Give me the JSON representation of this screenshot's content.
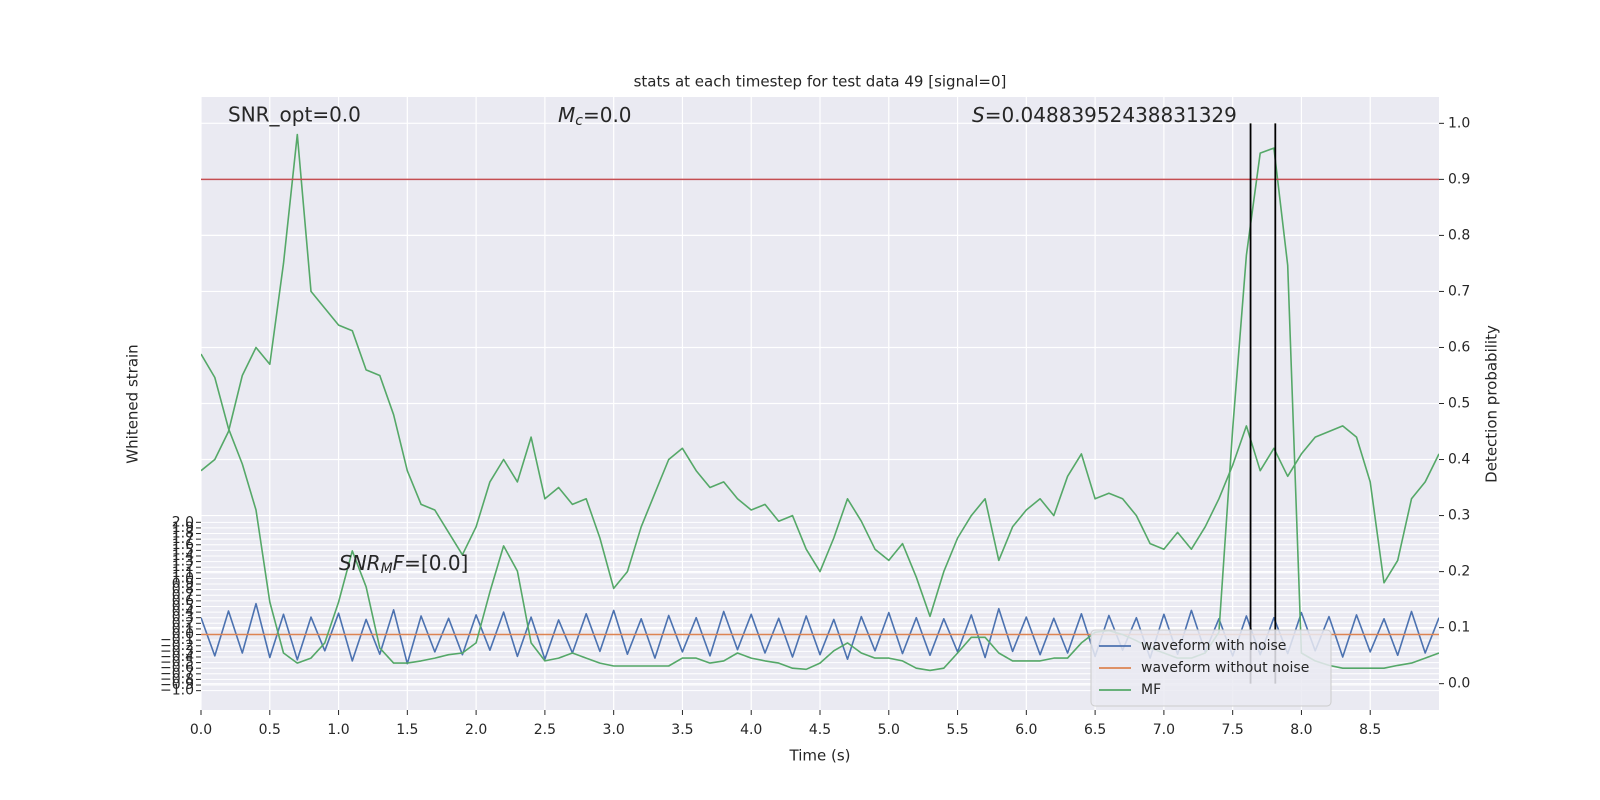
{
  "chart_data": {
    "type": "line",
    "title": "stats at each timestep for test data 49 [signal=0]",
    "xlabel": "Time (s)",
    "ylabel": "Whitened strain",
    "y2label": "Detection probability",
    "annotations": {
      "snr_opt": "SNR_opt=0.0",
      "mc": [
        "M",
        "c",
        "=0.0"
      ],
      "s": [
        "S",
        "=0.04883952438831329"
      ],
      "snr_mf": [
        "SNR",
        "M",
        "F",
        "=[0.0]"
      ]
    },
    "xlim": [
      0,
      9
    ],
    "xticks": [
      {
        "value": 0,
        "label": "0.0"
      },
      0.5,
      {
        "value": 1,
        "label": "1.0"
      },
      1.5,
      {
        "value": 2,
        "label": "2.0"
      },
      2.5,
      {
        "value": 3,
        "label": "3.0"
      },
      3.5,
      {
        "value": 4,
        "label": "4.0"
      },
      4.5,
      {
        "value": 5,
        "label": "5.0"
      },
      5.5,
      {
        "value": 6,
        "label": "6.0"
      },
      6.5,
      {
        "value": 7,
        "label": "7.0"
      },
      7.5,
      {
        "value": 8,
        "label": "8.0"
      },
      8.5
    ],
    "ylim": [
      -1.345,
      9.58
    ],
    "yticks": [
      {
        "value": -1,
        "label": "−1.0"
      },
      {
        "value": -0.9,
        "label": "−0.9"
      },
      {
        "value": -0.8,
        "label": "−0.8"
      },
      {
        "value": -0.7,
        "label": "−0.7"
      },
      {
        "value": -0.6,
        "label": "−0.6"
      },
      {
        "value": -0.5,
        "label": "−0.5"
      },
      {
        "value": -0.4,
        "label": "−0.4"
      },
      {
        "value": -0.3,
        "label": "−0.3"
      },
      {
        "value": -0.2,
        "label": "−0.2"
      },
      {
        "value": -0.1,
        "label": "−0.1"
      },
      {
        "value": 0,
        "label": "0.0"
      },
      0.1,
      0.2,
      0.3,
      0.4,
      0.5,
      0.6,
      0.7,
      0.8,
      0.9,
      {
        "value": 1,
        "label": "1.0"
      },
      1.1,
      1.2,
      1.3,
      1.4,
      1.5,
      1.6,
      1.7,
      1.8,
      1.9,
      {
        "value": 2,
        "label": "2.0"
      }
    ],
    "y2lim": [
      -0.047,
      1.047
    ],
    "y2ticks": [
      {
        "value": 0,
        "label": "0.0"
      },
      0.1,
      0.2,
      0.3,
      0.4,
      0.5,
      0.6,
      0.7,
      0.8,
      0.9,
      {
        "value": 1,
        "label": "1.0"
      }
    ],
    "grid": true,
    "legend": "lower right",
    "hline": {
      "value": 0.9,
      "color": "#c44e52",
      "axis": "y2"
    },
    "vlines": {
      "x": [
        7.63,
        7.81
      ],
      "ymin": 0,
      "ymax": 1,
      "color": "#000000",
      "axis": "y2"
    },
    "x": [
      0,
      0.1,
      0.2,
      0.3,
      0.4,
      0.5,
      0.6,
      0.7,
      0.8,
      0.9,
      1,
      1.1,
      1.2,
      1.3,
      1.4,
      1.5,
      1.6,
      1.7,
      1.8,
      1.9,
      2,
      2.1,
      2.2,
      2.3,
      2.4,
      2.5,
      2.6,
      2.7,
      2.8,
      2.9,
      3,
      3.1,
      3.2,
      3.3,
      3.4,
      3.5,
      3.6,
      3.7,
      3.8,
      3.9,
      4,
      4.1,
      4.2,
      4.3,
      4.4,
      4.5,
      4.6,
      4.7,
      4.8,
      4.9,
      5,
      5.1,
      5.2,
      5.3,
      5.4,
      5.5,
      5.6,
      5.7,
      5.8,
      5.9,
      6,
      6.1,
      6.2,
      6.3,
      6.4,
      6.5,
      6.6,
      6.7,
      6.8,
      6.9,
      7,
      7.1,
      7.2,
      7.3,
      7.4,
      7.5,
      7.6,
      7.7,
      7.8,
      7.9,
      8,
      8.1,
      8.2,
      8.3,
      8.4,
      8.5,
      8.6,
      8.7,
      8.8,
      8.9,
      9
    ],
    "series": [
      {
        "name": "waveform with noise",
        "color": "#4c72b0",
        "values": [
          0.3,
          -0.38,
          0.42,
          -0.33,
          0.55,
          -0.41,
          0.36,
          -0.45,
          0.31,
          -0.29,
          0.38,
          -0.47,
          0.27,
          -0.35,
          0.44,
          -0.52,
          0.33,
          -0.31,
          0.29,
          -0.36,
          0.35,
          -0.28,
          0.4,
          -0.39,
          0.31,
          -0.44,
          0.26,
          -0.33,
          0.37,
          -0.3,
          0.43,
          -0.35,
          0.28,
          -0.42,
          0.34,
          -0.31,
          0.3,
          -0.38,
          0.41,
          -0.27,
          0.36,
          -0.33,
          0.29,
          -0.4,
          0.33,
          -0.36,
          0.27,
          -0.44,
          0.32,
          -0.29,
          0.39,
          -0.34,
          0.3,
          -0.37,
          0.28,
          -0.31,
          0.35,
          -0.41,
          0.46,
          -0.3,
          0.31,
          -0.36,
          0.29,
          -0.33,
          0.37,
          -0.39,
          0.34,
          -0.28,
          0.3,
          -0.42,
          0.36,
          -0.35,
          0.43,
          -0.31,
          0.28,
          -0.38,
          0.33,
          -0.36,
          0.3,
          -0.34,
          0.39,
          -0.29,
          0.32,
          -0.4,
          0.35,
          -0.31,
          0.28,
          -0.37,
          0.41,
          -0.33,
          0.3
        ]
      },
      {
        "name": "waveform without noise",
        "color": "#dd8452",
        "x": [
          0,
          9
        ],
        "values": [
          0,
          0
        ]
      },
      {
        "name": "MF",
        "color": "#55a868",
        "values": [
          5.0,
          4.58,
          3.67,
          3.04,
          2.22,
          0.58,
          -0.33,
          -0.51,
          -0.42,
          -0.15,
          0.58,
          1.49,
          0.85,
          -0.24,
          -0.51,
          -0.51,
          -0.47,
          -0.42,
          -0.36,
          -0.33,
          -0.15,
          0.76,
          1.58,
          1.13,
          -0.15,
          -0.47,
          -0.42,
          -0.33,
          -0.42,
          -0.51,
          -0.56,
          -0.56,
          -0.56,
          -0.56,
          -0.56,
          -0.42,
          -0.42,
          -0.51,
          -0.47,
          -0.33,
          -0.42,
          -0.47,
          -0.51,
          -0.6,
          -0.62,
          -0.51,
          -0.29,
          -0.15,
          -0.33,
          -0.42,
          -0.42,
          -0.47,
          -0.6,
          -0.64,
          -0.6,
          -0.33,
          -0.05,
          -0.05,
          -0.33,
          -0.47,
          -0.47,
          -0.47,
          -0.42,
          -0.42,
          -0.15,
          0.04,
          0.07,
          0,
          -0.11,
          -0.24,
          -0.33,
          -0.42,
          -0.42,
          -0.33,
          0.04,
          3.67,
          6.76,
          8.58,
          8.67,
          6.58,
          -0.33,
          -0.47,
          -0.55,
          -0.6,
          -0.6,
          -0.6,
          -0.6,
          -0.55,
          -0.51,
          -0.42,
          -0.33
        ]
      },
      {
        "color": "#55a868",
        "axis": "y2",
        "values": [
          0.38,
          0.4,
          0.45,
          0.55,
          0.6,
          0.57,
          0.75,
          0.98,
          0.7,
          0.67,
          0.64,
          0.63,
          0.56,
          0.55,
          0.48,
          0.38,
          0.32,
          0.31,
          0.27,
          0.23,
          0.28,
          0.36,
          0.4,
          0.36,
          0.44,
          0.33,
          0.35,
          0.32,
          0.33,
          0.26,
          0.17,
          0.2,
          0.28,
          0.34,
          0.4,
          0.42,
          0.38,
          0.35,
          0.36,
          0.33,
          0.31,
          0.32,
          0.29,
          0.3,
          0.24,
          0.2,
          0.26,
          0.33,
          0.29,
          0.24,
          0.22,
          0.25,
          0.19,
          0.12,
          0.2,
          0.26,
          0.3,
          0.33,
          0.22,
          0.28,
          0.31,
          0.33,
          0.3,
          0.37,
          0.41,
          0.33,
          0.34,
          0.33,
          0.3,
          0.25,
          0.24,
          0.27,
          0.24,
          0.28,
          0.33,
          0.39,
          0.46,
          0.38,
          0.42,
          0.37,
          0.41,
          0.44,
          0.45,
          0.46,
          0.44,
          0.36,
          0.18,
          0.22,
          0.33,
          0.36,
          0.41
        ]
      }
    ]
  }
}
